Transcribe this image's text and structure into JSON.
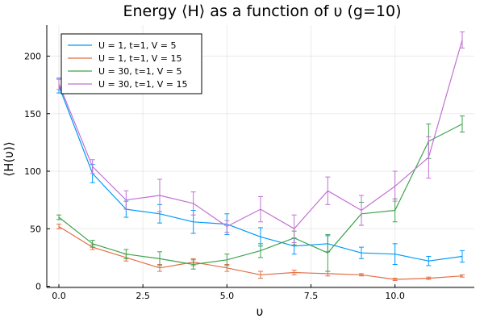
{
  "chart_data": {
    "type": "line",
    "title": "Energy ⟨H⟩ as a function of υ (g=10)",
    "xlabel": "υ",
    "ylabel": "⟨H(υ)⟩",
    "xlim": [
      -0.36,
      12.36
    ],
    "ylim": [
      -1,
      227
    ],
    "xticks": [
      0,
      2.5,
      5,
      7.5,
      10
    ],
    "xtick_labels": [
      "0.0",
      "2.5",
      "5.0",
      "7.5",
      "10.0"
    ],
    "yticks": [
      0,
      50,
      100,
      150,
      200
    ],
    "ytick_labels": [
      "0",
      "50",
      "100",
      "150",
      "200"
    ],
    "grid": true,
    "legend_position": "top-left",
    "x": [
      0,
      1,
      2,
      3,
      4,
      5,
      6,
      7,
      8,
      9,
      10,
      11,
      12
    ],
    "series": [
      {
        "name": "U = 1, t=1, V = 5",
        "color": "#009AFA",
        "values": [
          174,
          98,
          67,
          63,
          56,
          54,
          43,
          35,
          37,
          29,
          28,
          22,
          26
        ],
        "errors": [
          6,
          8,
          7,
          8,
          10,
          9,
          8,
          7,
          7,
          5,
          9,
          4,
          5
        ]
      },
      {
        "name": "U = 1, t=1, V = 15",
        "color": "#E26F46",
        "values": [
          52,
          34,
          25,
          16,
          21,
          16,
          10,
          12,
          11,
          10,
          6,
          7,
          9
        ],
        "errors": [
          2,
          2,
          3,
          3,
          3,
          3,
          3,
          2,
          2,
          1,
          1,
          1,
          1
        ]
      },
      {
        "name": "U = 30, t=1, V = 5",
        "color": "#3EA44E",
        "values": [
          60,
          37,
          28,
          24,
          19,
          23,
          31,
          42,
          29,
          63,
          66,
          126,
          141
        ],
        "errors": [
          2,
          3,
          4,
          6,
          4,
          5,
          6,
          6,
          16,
          10,
          10,
          15,
          7
        ]
      },
      {
        "name": "U = 30, t=1, V = 15",
        "color": "#C271D2",
        "values": [
          176,
          104,
          75,
          79,
          72,
          52,
          67,
          50,
          83,
          66,
          87,
          112,
          214
        ],
        "errors": [
          5,
          6,
          8,
          14,
          10,
          5,
          11,
          12,
          12,
          13,
          13,
          18,
          7
        ]
      }
    ]
  }
}
